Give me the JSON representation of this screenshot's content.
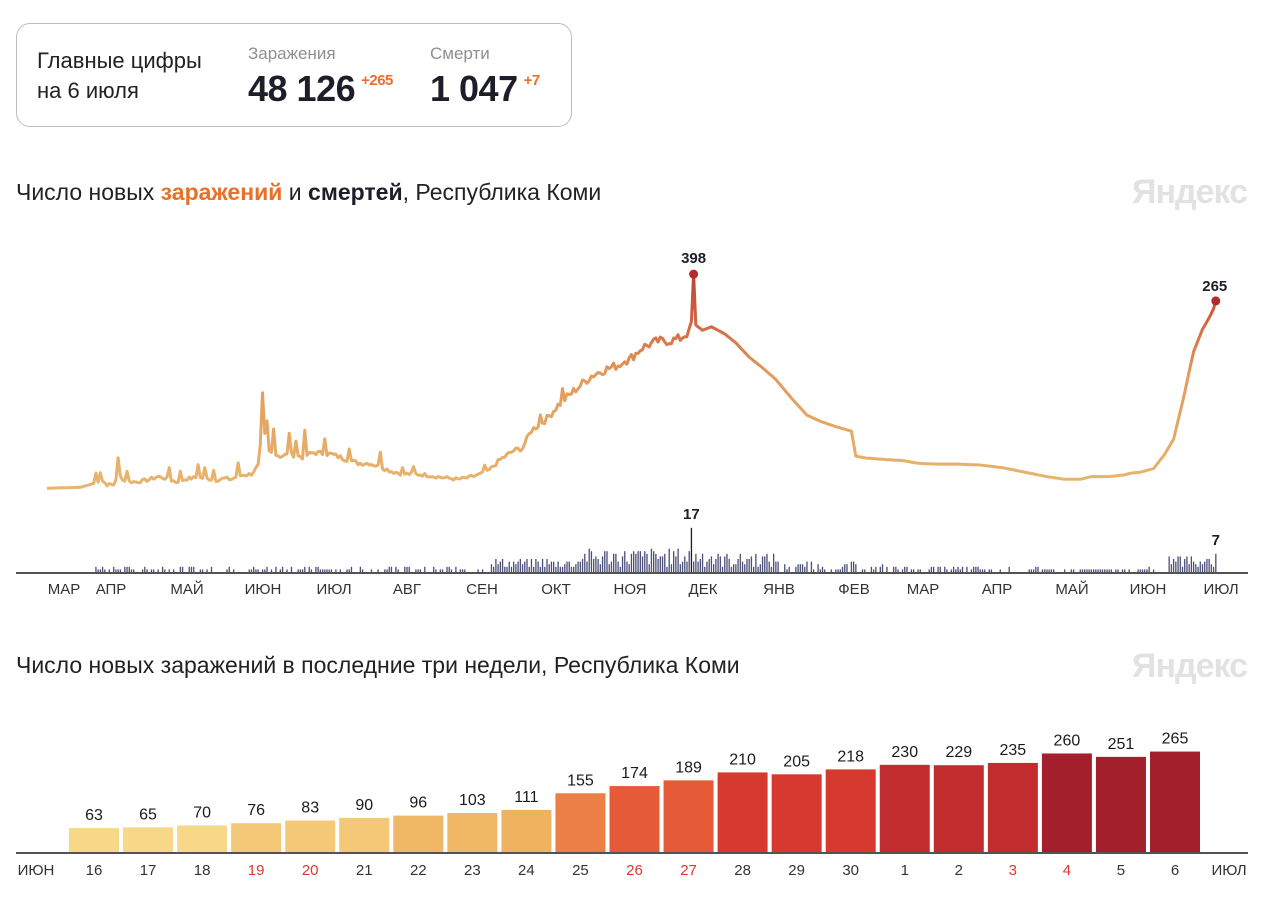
{
  "summary": {
    "heading_line1": "Главные цифры",
    "heading_line2": "на 6 июля",
    "cases_label": "Заражения",
    "cases_value": "48 126",
    "cases_delta": "+265",
    "deaths_label": "Смерти",
    "deaths_value": "1 047",
    "deaths_delta": "+7"
  },
  "chart1_title": {
    "part1": "Число новых ",
    "cases_word": "заражений",
    "part2": " и ",
    "deaths_word": "смертей",
    "part3": ", Республика Коми"
  },
  "chart2_title": "Число новых заражений в последние три недели, Республика Коми",
  "logo": "Яндекс",
  "colors": {
    "cases_low": "#e8b46a",
    "cases_high": "#c8433a",
    "deaths": "#4a4e78",
    "accent": "#e8702a",
    "weekend": "#d83a2e"
  },
  "chart_data": [
    {
      "type": "line",
      "months": [
        "МАР",
        "АПР",
        "МАЙ",
        "ИЮН",
        "ИЮЛ",
        "АВГ",
        "СЕН",
        "ОКТ",
        "НОЯ",
        "ДЕК",
        "ЯНВ",
        "ФЕВ",
        "МАР",
        "АПР",
        "МАЙ",
        "ИЮН",
        "ИЮЛ"
      ],
      "cases_keypoints": [
        [
          0,
          2
        ],
        [
          15,
          3
        ],
        [
          22,
          8
        ],
        [
          24,
          12
        ],
        [
          27,
          6
        ],
        [
          30,
          6
        ],
        [
          32,
          18
        ],
        [
          35,
          10
        ],
        [
          40,
          9
        ],
        [
          45,
          11
        ],
        [
          50,
          15
        ],
        [
          55,
          12
        ],
        [
          58,
          9
        ],
        [
          62,
          12
        ],
        [
          67,
          14
        ],
        [
          72,
          13
        ],
        [
          76,
          11
        ],
        [
          80,
          13
        ],
        [
          83,
          12
        ],
        [
          86,
          16
        ],
        [
          92,
          18
        ],
        [
          95,
          27
        ],
        [
          97,
          70
        ],
        [
          100,
          43
        ],
        [
          105,
          38
        ],
        [
          110,
          40
        ],
        [
          115,
          37
        ],
        [
          120,
          42
        ],
        [
          128,
          40
        ],
        [
          134,
          35
        ],
        [
          140,
          30
        ],
        [
          145,
          30
        ],
        [
          150,
          26
        ],
        [
          155,
          21
        ],
        [
          160,
          18
        ],
        [
          165,
          18
        ],
        [
          170,
          17
        ],
        [
          178,
          14
        ],
        [
          185,
          12
        ],
        [
          190,
          14
        ],
        [
          198,
          20
        ],
        [
          204,
          34
        ],
        [
          210,
          44
        ],
        [
          214,
          47
        ],
        [
          218,
          67
        ],
        [
          225,
          80
        ],
        [
          230,
          95
        ],
        [
          238,
          113
        ],
        [
          245,
          128
        ],
        [
          250,
          134
        ],
        [
          257,
          140
        ],
        [
          262,
          146
        ],
        [
          268,
          160
        ],
        [
          275,
          167
        ],
        [
          280,
          167
        ],
        [
          285,
          170
        ],
        [
          289,
          177
        ],
        [
          290,
          189
        ],
        [
          291,
          242
        ],
        [
          292,
          185
        ],
        [
          295,
          179
        ],
        [
          299,
          183
        ],
        [
          305,
          175
        ],
        [
          310,
          165
        ],
        [
          316,
          149
        ],
        [
          322,
          137
        ],
        [
          328,
          124
        ],
        [
          335,
          103
        ],
        [
          342,
          84
        ],
        [
          348,
          77
        ],
        [
          355,
          71
        ],
        [
          362,
          66
        ],
        [
          364,
          38
        ],
        [
          368,
          36
        ],
        [
          378,
          34
        ],
        [
          385,
          33
        ],
        [
          392,
          30
        ],
        [
          400,
          29
        ],
        [
          410,
          29
        ],
        [
          420,
          28
        ],
        [
          430,
          25
        ],
        [
          440,
          20
        ],
        [
          450,
          15
        ],
        [
          458,
          12
        ],
        [
          465,
          12
        ],
        [
          470,
          15
        ],
        [
          478,
          15
        ],
        [
          485,
          17
        ],
        [
          488,
          19
        ],
        [
          492,
          20
        ],
        [
          498,
          24
        ],
        [
          503,
          40
        ],
        [
          507,
          57
        ],
        [
          511,
          98
        ],
        [
          516,
          155
        ],
        [
          520,
          180
        ],
        [
          523,
          193
        ],
        [
          525,
          203
        ],
        [
          526,
          212
        ]
      ],
      "cases_peak": {
        "label": "398"
      },
      "cases_last": {
        "label": "265"
      },
      "deaths_peak_label": "17",
      "deaths_last_label": "7"
    },
    {
      "type": "bar",
      "categories": [
        "16",
        "17",
        "18",
        "19",
        "20",
        "21",
        "22",
        "23",
        "24",
        "25",
        "26",
        "27",
        "28",
        "29",
        "30",
        "1",
        "2",
        "3",
        "4",
        "5",
        "6"
      ],
      "values": [
        63,
        65,
        70,
        76,
        83,
        90,
        96,
        103,
        111,
        155,
        174,
        189,
        210,
        205,
        218,
        230,
        229,
        235,
        260,
        251,
        265
      ],
      "weekend_days": [
        "19",
        "20",
        "26",
        "27",
        "3",
        "4"
      ],
      "x_start_label": "ИЮН",
      "x_end_label": "ИЮЛ"
    }
  ]
}
